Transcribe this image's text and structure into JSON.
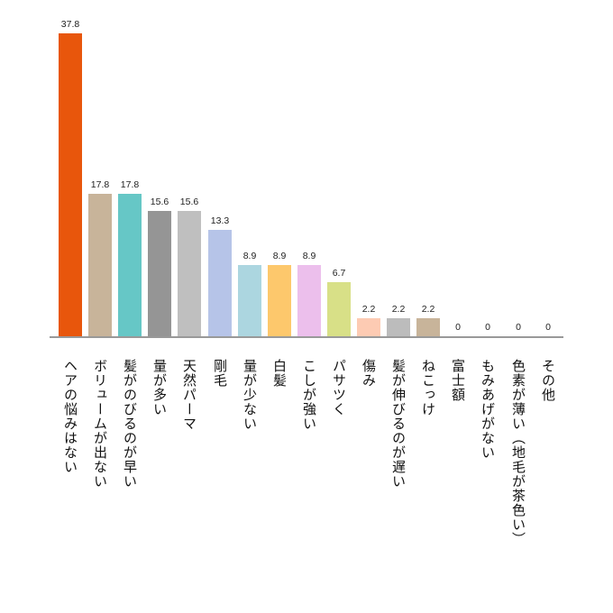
{
  "chart_data": {
    "type": "bar",
    "title": "",
    "xlabel": "",
    "ylabel": "",
    "ylim": [
      0,
      37.8
    ],
    "grid": false,
    "legend": null,
    "categories": [
      "ヘアの悩みはない",
      "ボリュームが出ない",
      "髪がのびるのが早い",
      "量が多い",
      "天然パーマ",
      "剛毛",
      "量が少ない",
      "白髪",
      "こしが強い",
      "パサツく",
      "傷み",
      "髪が伸びるのが遅い",
      "ねこっけ",
      "富士額",
      "もみあげがない",
      "色素が薄い（地毛が茶色い）",
      "その他"
    ],
    "values": [
      37.8,
      17.8,
      17.8,
      15.6,
      15.6,
      13.3,
      8.9,
      8.9,
      8.9,
      6.7,
      2.2,
      2.2,
      2.2,
      0,
      0,
      0,
      0
    ],
    "value_labels": [
      "37.8",
      "17.8",
      "17.8",
      "15.6",
      "15.6",
      "13.3",
      "8.9",
      "8.9",
      "8.9",
      "6.7",
      "2.2",
      "2.2",
      "2.2",
      "0",
      "0",
      "0",
      "0"
    ],
    "colors": [
      "#e8560c",
      "#c8b49a",
      "#66c7c6",
      "#959595",
      "#bfbfbf",
      "#b6c4e8",
      "#acd6e0",
      "#fdc86c",
      "#ecbfec",
      "#d8e087",
      "#fdcbb3",
      "#bcbcbc",
      "#c8b49a",
      "#ffffff",
      "#ffffff",
      "#ffffff",
      "#ffffff"
    ]
  }
}
